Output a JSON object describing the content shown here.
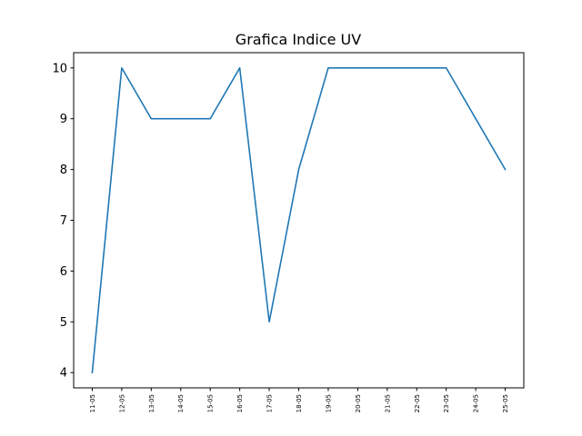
{
  "chart_data": {
    "type": "line",
    "title": "Grafica Indice UV",
    "xlabel": "",
    "ylabel": "",
    "categories": [
      "11-05",
      "12-05",
      "13-05",
      "14-05",
      "15-05",
      "16-05",
      "17-05",
      "18-05",
      "19-05",
      "20-05",
      "21-05",
      "22-05",
      "23-05",
      "24-05",
      "25-05"
    ],
    "series": [
      {
        "values": [
          4,
          10,
          9,
          9,
          9,
          10,
          5,
          8,
          10,
          10,
          10,
          10,
          10,
          9,
          8
        ]
      }
    ],
    "yticks": [
      4,
      5,
      6,
      7,
      8,
      9,
      10
    ],
    "ylim": [
      3.7,
      10.3
    ],
    "grid": false,
    "legend": "none",
    "line_color": "#1f77b4"
  }
}
